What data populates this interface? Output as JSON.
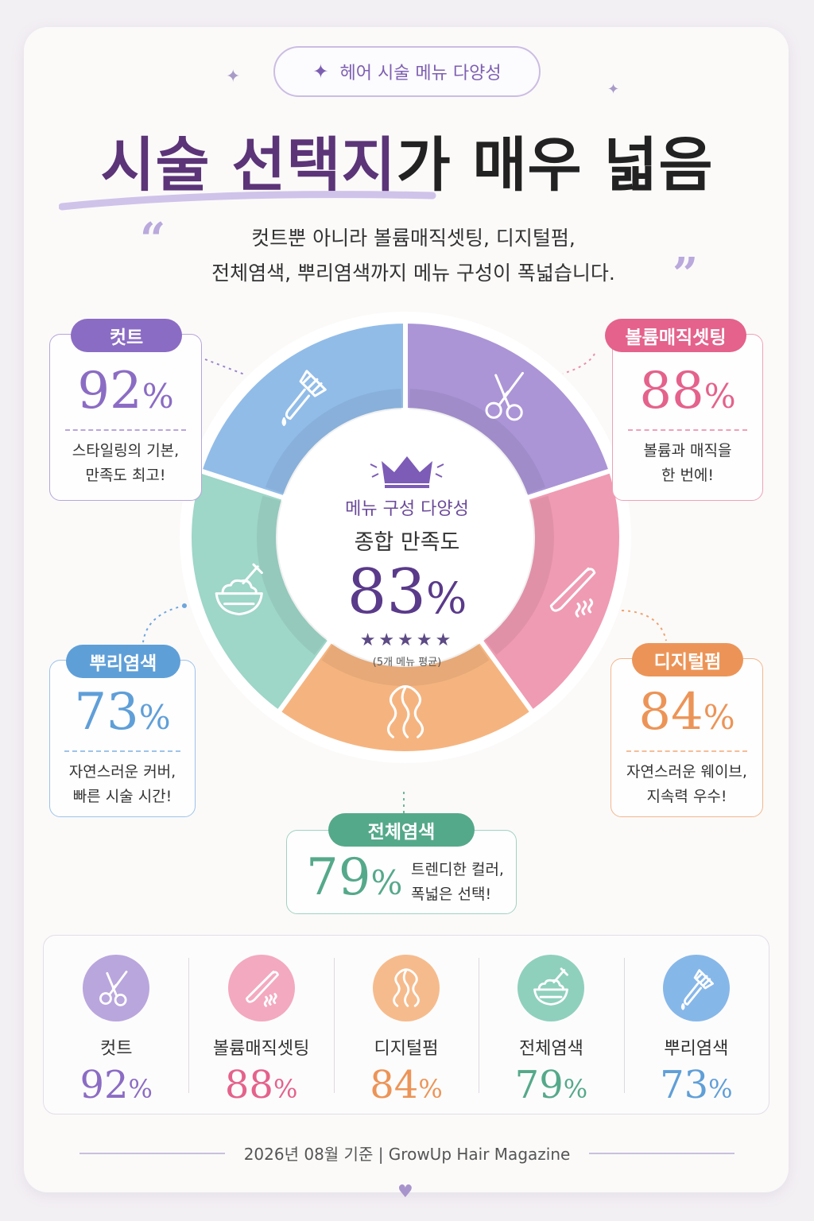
{
  "badge_top": "헤어 시술 메뉴 다양성",
  "title": {
    "highlight": "시술 선택지",
    "rest": "가 매우 넓음"
  },
  "subtitle": {
    "line1": "컷트뿐 아니라 볼륨매직셋팅, 디지털펌,",
    "line2": "전체염색, 뿌리염색까지 메뉴 구성이 폭넓습니다."
  },
  "center": {
    "label1": "메뉴 구성 다양성",
    "label2": "종합 만족도",
    "value": "83",
    "unit": "%",
    "stars": "★★★★★",
    "note": "(5개 메뉴 평균)"
  },
  "pct_sign": "%",
  "chart_data": {
    "type": "pie",
    "title": "메뉴 구성 다양성 종합 만족도",
    "categories": [
      "컷트",
      "볼륨매직셋팅",
      "디지털펌",
      "전체염색",
      "뿌리염색"
    ],
    "values": [
      92,
      88,
      84,
      79,
      73
    ],
    "colors": [
      "#ab95d6",
      "#ef9bb3",
      "#f5b47f",
      "#9ed6c8",
      "#91bce8"
    ],
    "icons": [
      "scissors-icon",
      "flat-iron-icon",
      "wavy-hair-icon",
      "dye-bowl-icon",
      "dye-brush-icon"
    ],
    "average": 83
  },
  "callouts": [
    {
      "label": "컷트",
      "value": "92",
      "desc1": "스타일링의 기본,",
      "desc2": "만족도 최고!",
      "color": "#8b6cc4"
    },
    {
      "label": "볼륨매직셋팅",
      "value": "88",
      "desc1": "볼륨과 매직을",
      "desc2": "한 번에!",
      "color": "#e4628c"
    },
    {
      "label": "디지털펌",
      "value": "84",
      "desc1": "자연스러운 웨이브,",
      "desc2": "지속력 우수!",
      "color": "#ec9457"
    },
    {
      "label": "전체염색",
      "value": "79",
      "desc1": "트렌디한 컬러,",
      "desc2": "폭넓은 선택!",
      "color": "#55a98b"
    },
    {
      "label": "뿌리염색",
      "value": "73",
      "desc1": "자연스러운 커버,",
      "desc2": "빠른 시술 시간!",
      "color": "#5f9fd8"
    }
  ],
  "summary": [
    {
      "label": "컷트",
      "value": "92",
      "color": "#8b6cc4",
      "bg": "#b9a6dd",
      "icon": "scissors-icon"
    },
    {
      "label": "볼륨매직셋팅",
      "value": "88",
      "color": "#e4628c",
      "bg": "#f3a9bf",
      "icon": "flat-iron-icon"
    },
    {
      "label": "디지털펌",
      "value": "84",
      "color": "#ec9457",
      "bg": "#f6bb8c",
      "icon": "wavy-hair-icon"
    },
    {
      "label": "전체염색",
      "value": "79",
      "color": "#55a98b",
      "bg": "#8fd0bd",
      "icon": "dye-bowl-icon"
    },
    {
      "label": "뿌리염색",
      "value": "73",
      "color": "#5f9fd8",
      "bg": "#86b7e9",
      "icon": "dye-brush-icon"
    }
  ],
  "footer": "2026년 08월 기준   |   GrowUp Hair Magazine"
}
